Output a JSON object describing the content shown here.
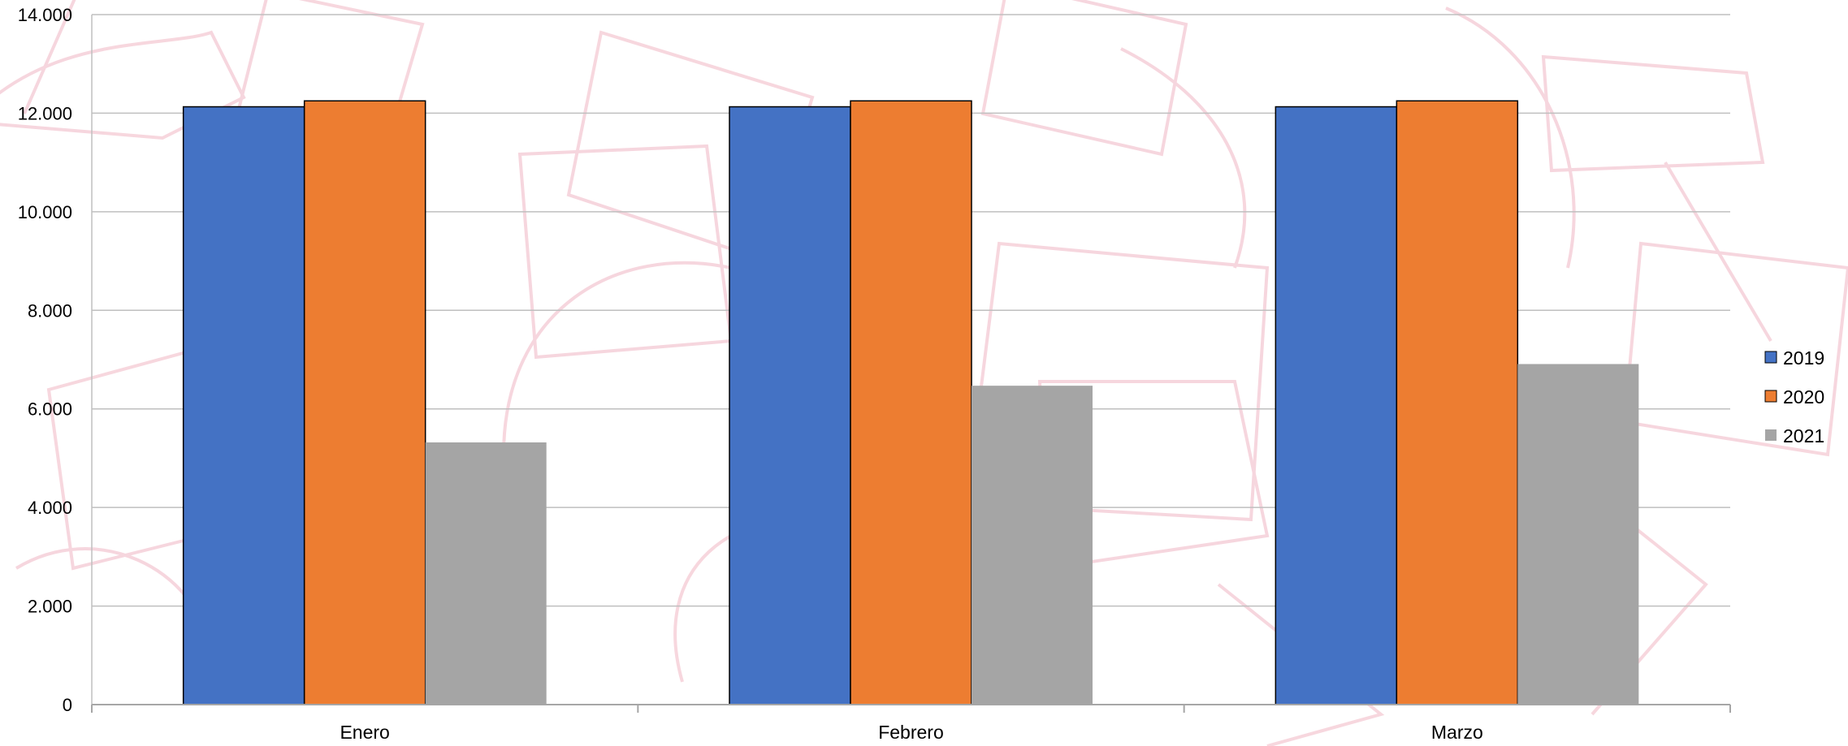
{
  "chart_data": {
    "type": "bar",
    "title": "",
    "xlabel": "",
    "ylabel": "",
    "categories": [
      "Enero",
      "Febrero",
      "Marzo"
    ],
    "series": [
      {
        "name": "2019",
        "values": [
          12130,
          12130,
          12130
        ],
        "color": "#4472C4"
      },
      {
        "name": "2020",
        "values": [
          12250,
          12250,
          12250
        ],
        "color": "#ED7D31"
      },
      {
        "name": "2021",
        "values": [
          5320,
          6470,
          6910
        ],
        "color": "#A5A5A5"
      }
    ],
    "ylim": [
      0,
      14000
    ],
    "yticks": [
      0,
      2000,
      4000,
      6000,
      8000,
      10000,
      12000,
      14000
    ],
    "ytick_labels": [
      "0",
      "2.000",
      "4.000",
      "6.000",
      "8.000",
      "10.000",
      "12.000",
      "14.000"
    ],
    "grid": true,
    "legend_position": "right",
    "background_watermark": "pink outline shapes pattern"
  }
}
